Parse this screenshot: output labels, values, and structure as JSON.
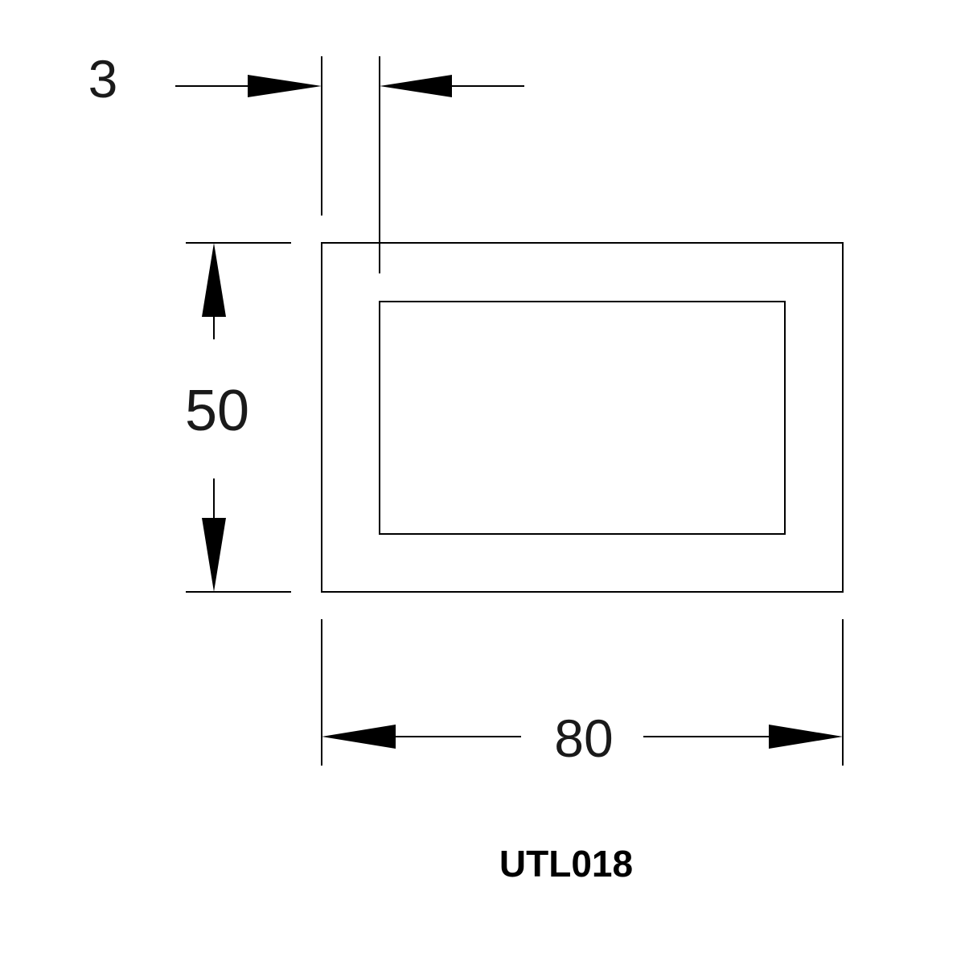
{
  "dimensions": {
    "thickness": "3",
    "height": "50",
    "width": "80"
  },
  "part_code": "UTL018",
  "colors": {
    "ink": "#000000",
    "background": "#ffffff"
  }
}
